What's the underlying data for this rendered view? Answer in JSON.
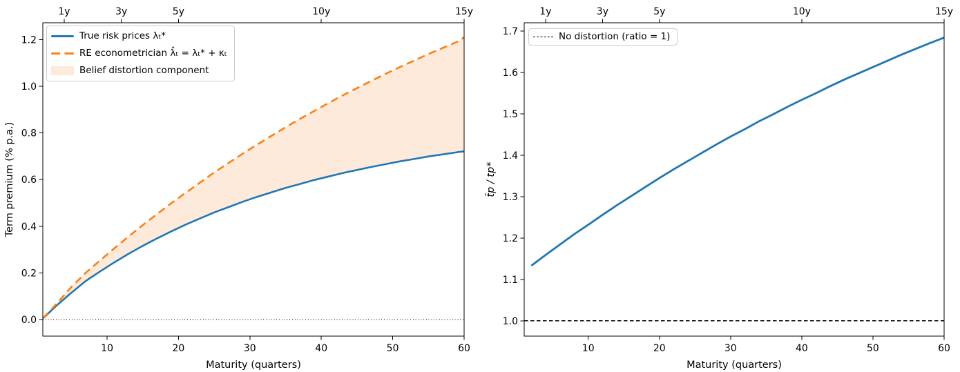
{
  "chart_data": [
    {
      "type": "line",
      "panel": "left",
      "title": "",
      "xlabel": "Maturity (quarters)",
      "ylabel": "Term premium (% p.a.)",
      "xlim": [
        1,
        60
      ],
      "ylim": [
        -0.071,
        1.272
      ],
      "x_ticks": [
        10,
        20,
        30,
        40,
        50,
        60
      ],
      "y_ticks": [
        0.0,
        0.2,
        0.4,
        0.6,
        0.8,
        1.0,
        1.2
      ],
      "top_ticks": {
        "labels": [
          "1y",
          "3y",
          "5y",
          "10y",
          "15y"
        ],
        "positions_quarters": [
          4,
          12,
          20,
          40,
          60
        ]
      },
      "grid": false,
      "legend_position": "upper left",
      "x": [
        1,
        3,
        5,
        7,
        9,
        11,
        13,
        15,
        17,
        19,
        21,
        23,
        25,
        27,
        29,
        31,
        33,
        35,
        37,
        39,
        41,
        43,
        45,
        47,
        49,
        51,
        53,
        55,
        57,
        59,
        60
      ],
      "series": [
        {
          "key": "true-risk-prices-line",
          "name": "True risk prices λₜ*",
          "color": "#1f77b4",
          "style": "solid",
          "line_width": 2.6,
          "values": [
            0.004,
            0.062,
            0.115,
            0.165,
            0.206,
            0.245,
            0.282,
            0.316,
            0.348,
            0.378,
            0.407,
            0.433,
            0.459,
            0.482,
            0.505,
            0.526,
            0.545,
            0.564,
            0.581,
            0.598,
            0.613,
            0.628,
            0.641,
            0.654,
            0.666,
            0.678,
            0.688,
            0.699,
            0.708,
            0.717,
            0.721
          ]
        },
        {
          "key": "re-econometrician-line",
          "name": "RE econometrician λ̂ₜ = λₜ* + κₜ",
          "color": "#ff7f0e",
          "style": "dashed",
          "line_width": 2.6,
          "values": [
            0.005,
            0.07,
            0.14,
            0.2,
            0.253,
            0.305,
            0.356,
            0.405,
            0.452,
            0.499,
            0.543,
            0.587,
            0.63,
            0.671,
            0.711,
            0.75,
            0.787,
            0.824,
            0.86,
            0.894,
            0.928,
            0.961,
            0.992,
            1.023,
            1.053,
            1.082,
            1.11,
            1.138,
            1.164,
            1.19,
            1.21
          ]
        },
        {
          "key": "belief-distortion-area",
          "name": "Belief distortion component",
          "color": "#fdeadb",
          "style": "fill_between",
          "between": [
            "true-risk-prices-line",
            "re-econometrician-line"
          ]
        }
      ],
      "hline": {
        "value": 0.0,
        "style": "dotted",
        "color": "#000000"
      }
    },
    {
      "type": "line",
      "panel": "right",
      "title": "",
      "xlabel": "Maturity (quarters)",
      "ylabel": "t̂p / tp*",
      "xlim": [
        1,
        60
      ],
      "ylim": [
        0.963,
        1.72
      ],
      "x_ticks": [
        10,
        20,
        30,
        40,
        50,
        60
      ],
      "y_ticks": [
        1.0,
        1.1,
        1.2,
        1.3,
        1.4,
        1.5,
        1.6,
        1.7
      ],
      "top_ticks": {
        "labels": [
          "1y",
          "3y",
          "5y",
          "10y",
          "15y"
        ],
        "positions_quarters": [
          4,
          12,
          20,
          40,
          60
        ]
      },
      "grid": false,
      "legend_position": "upper left",
      "x": [
        2,
        4,
        6,
        8,
        10,
        12,
        14,
        16,
        18,
        20,
        22,
        24,
        26,
        28,
        30,
        32,
        34,
        36,
        38,
        40,
        42,
        44,
        46,
        48,
        50,
        52,
        54,
        56,
        58,
        60
      ],
      "series": [
        {
          "key": "distortion-ratio-line",
          "color": "#1f77b4",
          "style": "solid",
          "line_width": 2.8,
          "values": [
            1.133,
            1.159,
            1.184,
            1.209,
            1.232,
            1.256,
            1.279,
            1.301,
            1.323,
            1.345,
            1.366,
            1.386,
            1.406,
            1.426,
            1.445,
            1.463,
            1.482,
            1.499,
            1.517,
            1.534,
            1.55,
            1.567,
            1.583,
            1.598,
            1.613,
            1.628,
            1.643,
            1.657,
            1.671,
            1.684
          ]
        }
      ],
      "hline": {
        "value": 1.0,
        "style": "dashed",
        "color": "#000000",
        "label": "No distortion (ratio = 1)"
      }
    }
  ]
}
